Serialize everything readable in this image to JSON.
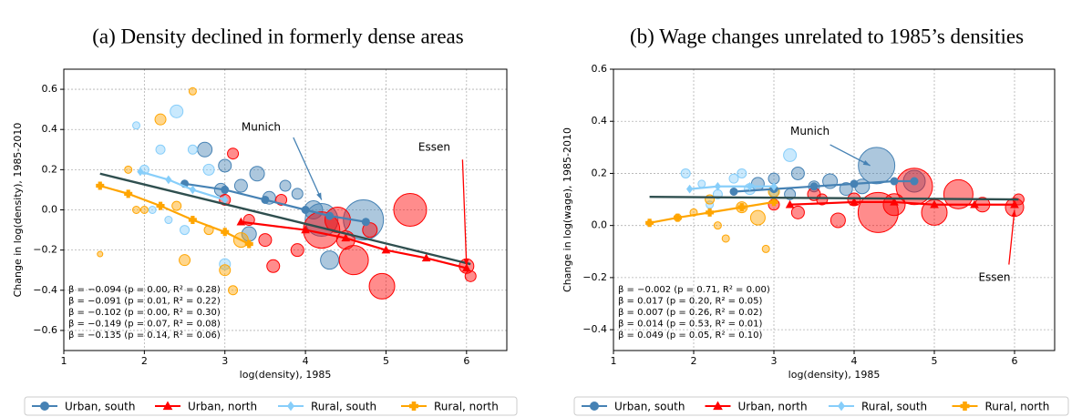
{
  "chart_data": [
    {
      "type": "scatter",
      "title": "(a) Density declined in formerly dense areas",
      "xlabel": "log(density), 1985",
      "ylabel": "Change in log(density), 1985-2010",
      "xlim": [
        1,
        6.5
      ],
      "ylim": [
        -0.7,
        0.7
      ],
      "xticks": [
        1,
        2,
        3,
        4,
        5,
        6
      ],
      "yticks": [
        {
          "value": -0.6,
          "label": "−0.6"
        },
        {
          "value": -0.4,
          "label": "−0.4"
        },
        {
          "value": -0.2,
          "label": "−0.2"
        },
        {
          "value": 0,
          "label": "0.0"
        },
        0.2,
        0.4,
        0.6
      ],
      "grid": true,
      "series": [
        {
          "name": "Urban, south",
          "color": "#4682b4",
          "marker": "circle",
          "x": [
            2.75,
            2.95,
            3.2,
            3.4,
            3.55,
            3.75,
            3.9,
            4.1,
            4.2,
            4.3,
            4.72,
            3.0,
            3.3
          ],
          "values": [
            0.3,
            0.1,
            0.12,
            0.18,
            0.06,
            0.12,
            0.08,
            0.0,
            -0.05,
            -0.25,
            -0.05,
            0.22,
            -0.12
          ],
          "sizes": [
            8,
            7,
            7,
            8,
            7,
            6,
            6,
            10,
            18,
            10,
            22,
            7,
            8
          ],
          "fit": {
            "x": [
              2.5,
              3.0,
              3.5,
              4.0,
              4.3,
              4.75
            ],
            "y": [
              0.13,
              0.1,
              0.05,
              0.0,
              -0.03,
              -0.06
            ]
          }
        },
        {
          "name": "Urban, north",
          "color": "#ff0000",
          "marker": "triangle",
          "x": [
            3.0,
            3.3,
            3.5,
            3.7,
            3.9,
            4.2,
            4.4,
            4.6,
            4.8,
            4.95,
            5.3,
            6.0,
            6.05,
            3.1,
            3.6,
            4.5
          ],
          "values": [
            0.05,
            -0.05,
            -0.15,
            0.05,
            -0.2,
            -0.1,
            -0.05,
            -0.25,
            -0.1,
            -0.38,
            0.0,
            -0.28,
            -0.33,
            0.28,
            -0.28,
            -0.15
          ],
          "sizes": [
            6,
            6,
            7,
            6,
            7,
            20,
            14,
            16,
            8,
            14,
            18,
            8,
            6,
            6,
            7,
            10
          ],
          "fit": {
            "x": [
              3.2,
              4.0,
              4.5,
              5.0,
              5.5,
              6.0
            ],
            "y": [
              -0.06,
              -0.1,
              -0.14,
              -0.2,
              -0.24,
              -0.29
            ]
          }
        },
        {
          "name": "Rural, south",
          "color": "#87cefa",
          "marker": "diamond",
          "x": [
            1.9,
            2.0,
            2.1,
            2.2,
            2.4,
            2.5,
            2.6,
            2.8,
            3.0,
            2.3
          ],
          "values": [
            0.42,
            0.2,
            0.0,
            0.3,
            0.49,
            -0.1,
            0.3,
            0.2,
            -0.27,
            -0.05
          ],
          "sizes": [
            4,
            5,
            4,
            5,
            7,
            5,
            5,
            6,
            6,
            4
          ],
          "fit": {
            "x": [
              1.95,
              2.3,
              2.6,
              3.0
            ],
            "y": [
              0.19,
              0.15,
              0.1,
              0.05
            ]
          }
        },
        {
          "name": "Rural, north",
          "color": "#ffa500",
          "marker": "plus",
          "x": [
            1.45,
            1.8,
            2.0,
            2.2,
            2.4,
            2.6,
            2.8,
            3.0,
            3.2,
            1.9,
            2.5,
            3.1
          ],
          "values": [
            -0.22,
            0.2,
            0.0,
            0.45,
            0.02,
            0.59,
            -0.1,
            -0.3,
            -0.15,
            0.0,
            -0.25,
            -0.4
          ],
          "sizes": [
            3,
            4,
            4,
            6,
            5,
            4,
            5,
            6,
            8,
            4,
            6,
            5
          ],
          "fit": {
            "x": [
              1.45,
              1.8,
              2.2,
              2.6,
              3.0,
              3.3
            ],
            "y": [
              0.12,
              0.08,
              0.02,
              -0.05,
              -0.11,
              -0.17
            ]
          }
        }
      ],
      "overall_fit": {
        "color": "#2f4f4f",
        "x": [
          1.45,
          6.05
        ],
        "y": [
          0.18,
          -0.27
        ]
      },
      "annotations": [
        {
          "text": "Munich",
          "color": "#4682b4",
          "x": 3.45,
          "y": 0.41,
          "xy": [
            4.2,
            0.05
          ],
          "from": [
            3.85,
            0.36
          ]
        },
        {
          "text": "Essen",
          "color": "#ff0000",
          "x": 5.6,
          "y": 0.31,
          "xy": [
            6.0,
            -0.28
          ],
          "from": [
            5.95,
            0.25
          ]
        }
      ],
      "stats": [
        {
          "text": "β = −0.094 (p = 0.00, R² = 0.28)",
          "color": "#2f4f4f"
        },
        {
          "text": "β = −0.091 (p = 0.01, R² = 0.22)",
          "color": "#4682b4"
        },
        {
          "text": "β = −0.102 (p = 0.00, R² = 0.30)",
          "color": "#ff0000"
        },
        {
          "text": "β = −0.149 (p = 0.07, R² = 0.08)",
          "color": "#87cefa"
        },
        {
          "text": "β = −0.135 (p = 0.14, R² = 0.06)",
          "color": "#ffa500"
        }
      ]
    },
    {
      "type": "scatter",
      "title": "(b) Wage changes unrelated to 1985’s densities",
      "xlabel": "log(density), 1985",
      "ylabel": "Change in log(wage), 1985-2010",
      "xlim": [
        1,
        6.5
      ],
      "ylim": [
        -0.48,
        0.6
      ],
      "xticks": [
        1,
        2,
        3,
        4,
        5,
        6
      ],
      "yticks": [
        {
          "value": -0.4,
          "label": "−0.4"
        },
        {
          "value": -0.2,
          "label": "−0.2"
        },
        {
          "value": 0,
          "label": "0.0"
        },
        0.2,
        0.4,
        0.6
      ],
      "grid": true,
      "series": [
        {
          "name": "Urban, south",
          "color": "#4682b4",
          "marker": "circle",
          "x": [
            2.8,
            3.0,
            3.3,
            3.5,
            3.7,
            3.9,
            4.1,
            4.28,
            4.75,
            3.2
          ],
          "values": [
            0.16,
            0.18,
            0.2,
            0.15,
            0.17,
            0.14,
            0.15,
            0.23,
            0.17,
            0.12
          ],
          "sizes": [
            7,
            6,
            7,
            6,
            8,
            7,
            8,
            20,
            12,
            6
          ],
          "fit": {
            "x": [
              2.5,
              3.0,
              3.5,
              4.0,
              4.5,
              4.75
            ],
            "y": [
              0.13,
              0.14,
              0.15,
              0.16,
              0.17,
              0.17
            ]
          }
        },
        {
          "name": "Urban, north",
          "color": "#ff0000",
          "marker": "triangle",
          "x": [
            3.0,
            3.3,
            3.6,
            3.8,
            4.0,
            4.3,
            4.5,
            4.75,
            5.0,
            5.3,
            5.6,
            6.0,
            6.05,
            3.5
          ],
          "values": [
            0.08,
            0.05,
            0.1,
            0.02,
            0.1,
            0.05,
            0.08,
            0.15,
            0.05,
            0.12,
            0.08,
            0.07,
            0.1,
            0.12
          ],
          "sizes": [
            6,
            7,
            6,
            8,
            7,
            22,
            12,
            20,
            14,
            16,
            8,
            10,
            6,
            7
          ],
          "fit": {
            "x": [
              3.2,
              4.0,
              4.5,
              5.0,
              5.5,
              6.0
            ],
            "y": [
              0.08,
              0.09,
              0.09,
              0.08,
              0.08,
              0.08
            ]
          }
        },
        {
          "name": "Rural, south",
          "color": "#87cefa",
          "marker": "diamond",
          "x": [
            1.9,
            2.1,
            2.3,
            2.5,
            2.7,
            3.0,
            3.2,
            2.2,
            2.6
          ],
          "values": [
            0.2,
            0.16,
            0.12,
            0.18,
            0.14,
            0.13,
            0.27,
            0.08,
            0.2
          ],
          "sizes": [
            5,
            4,
            5,
            5,
            6,
            5,
            7,
            4,
            5
          ],
          "fit": {
            "x": [
              1.95,
              2.3,
              2.7,
              3.0
            ],
            "y": [
              0.14,
              0.15,
              0.15,
              0.15
            ]
          }
        },
        {
          "name": "Rural, north",
          "color": "#ffa500",
          "marker": "plus",
          "x": [
            1.45,
            1.8,
            2.0,
            2.2,
            2.4,
            2.6,
            2.8,
            3.0,
            2.3,
            2.9
          ],
          "values": [
            0.01,
            0.03,
            0.05,
            0.1,
            -0.05,
            0.07,
            0.03,
            0.13,
            0.0,
            -0.09
          ],
          "sizes": [
            3,
            4,
            4,
            5,
            4,
            6,
            8,
            6,
            4,
            4
          ],
          "fit": {
            "x": [
              1.45,
              1.8,
              2.2,
              2.6,
              3.0
            ],
            "y": [
              0.01,
              0.03,
              0.05,
              0.07,
              0.09
            ]
          }
        }
      ],
      "overall_fit": {
        "color": "#2f4f4f",
        "x": [
          1.45,
          6.05
        ],
        "y": [
          0.11,
          0.1
        ]
      },
      "annotations": [
        {
          "text": "Munich",
          "color": "#4682b4",
          "x": 3.45,
          "y": 0.36,
          "xy": [
            4.2,
            0.23
          ],
          "from": [
            3.7,
            0.31
          ]
        },
        {
          "text": "Essen",
          "color": "#ff0000",
          "x": 5.75,
          "y": -0.2,
          "xy": [
            6.0,
            0.06
          ],
          "from": [
            5.93,
            -0.15
          ]
        }
      ],
      "stats": [
        {
          "text": "β = −0.002 (p = 0.71, R² = 0.00)",
          "color": "#2f4f4f"
        },
        {
          "text": "β = 0.017 (p = 0.20, R² = 0.05)",
          "color": "#4682b4"
        },
        {
          "text": "β = 0.007 (p = 0.26, R² = 0.02)",
          "color": "#ff0000"
        },
        {
          "text": "β = 0.014 (p = 0.53, R² = 0.01)",
          "color": "#87cefa"
        },
        {
          "text": "β = 0.049 (p = 0.05, R² = 0.10)",
          "color": "#ffa500"
        }
      ]
    }
  ]
}
